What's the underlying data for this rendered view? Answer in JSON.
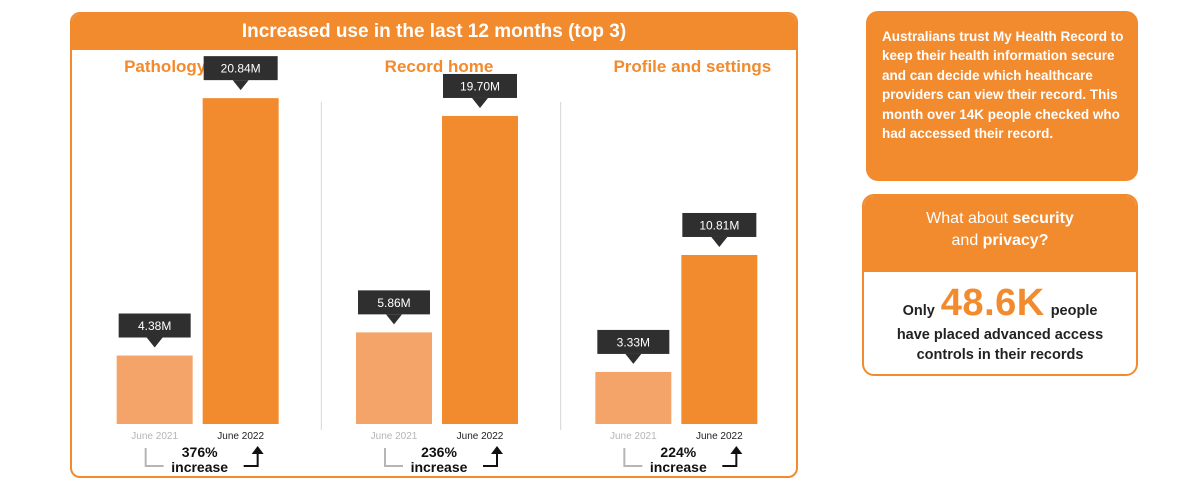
{
  "chart_title": "Increased use in the last 12 months (top 3)",
  "chart_data": {
    "type": "bar",
    "title": "Increased use in the last 12 months (top 3)",
    "ylim": [
      0,
      22
    ],
    "groups": [
      {
        "title": "Pathology Reports",
        "categories": [
          "June 2021",
          "June 2022"
        ],
        "values": [
          4.38,
          20.84
        ],
        "value_labels": [
          "4.38M",
          "20.84M"
        ],
        "increase": "376%",
        "increase_word": "increase"
      },
      {
        "title": "Record home",
        "categories": [
          "June 2021",
          "June 2022"
        ],
        "values": [
          5.86,
          19.7
        ],
        "value_labels": [
          "5.86M",
          "19.70M"
        ],
        "increase": "236%",
        "increase_word": "increase"
      },
      {
        "title": "Profile and settings",
        "categories": [
          "June 2021",
          "June 2022"
        ],
        "values": [
          3.33,
          10.81
        ],
        "value_labels": [
          "3.33M",
          "10.81M"
        ],
        "increase": "224%",
        "increase_word": "increase"
      }
    ],
    "colors": {
      "before": "#f4a468",
      "after": "#f28a2e",
      "label_box": "#2f2f2f",
      "muted_tick": "#b5b5b5"
    }
  },
  "info_card": {
    "part1": "Australians trust My Health Record to keep their health information secure and can decide which healthcare providers can view their record. This month ",
    "bold": "over 14K",
    "part2": " people checked who had accessed their record."
  },
  "security": {
    "q1": "What about ",
    "q1_bold": "security",
    "q2": "and ",
    "q2_bold": "privacy?",
    "only": "Only",
    "number": "48.6K",
    "people": "people",
    "line2": "have placed advanced access",
    "line3": "controls in their records"
  },
  "accent_color": "#f28a2e"
}
